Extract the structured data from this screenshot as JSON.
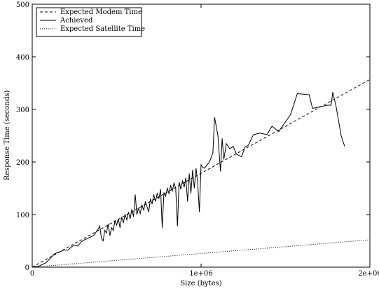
{
  "chart_data": {
    "type": "line",
    "xlabel": "Size (bytes)",
    "ylabel": "Response Time (seconds)",
    "xlim": [
      0,
      2000000
    ],
    "ylim": [
      0,
      500
    ],
    "x_ticks": [
      {
        "value": 0,
        "label": "0"
      },
      {
        "value": 1000000,
        "label": "1e+06"
      },
      {
        "value": 2000000,
        "label": "2e+06"
      }
    ],
    "y_ticks": [
      {
        "value": 0,
        "label": "0"
      },
      {
        "value": 100,
        "label": "100"
      },
      {
        "value": 200,
        "label": "200"
      },
      {
        "value": 300,
        "label": "300"
      },
      {
        "value": 400,
        "label": "400"
      },
      {
        "value": 500,
        "label": "500"
      }
    ],
    "legend_position": "top-left",
    "grid": false,
    "series": [
      {
        "name": "Expected Modem Time",
        "style": "dashed",
        "color": "#000000",
        "points": [
          [
            0,
            0
          ],
          [
            2000000,
            357
          ]
        ]
      },
      {
        "name": "Achieved",
        "style": "solid",
        "color": "#000000",
        "points": [
          [
            0,
            0
          ],
          [
            40000,
            2
          ],
          [
            80000,
            8
          ],
          [
            110000,
            18
          ],
          [
            130000,
            25
          ],
          [
            150000,
            28
          ],
          [
            170000,
            30
          ],
          [
            190000,
            33
          ],
          [
            210000,
            32
          ],
          [
            230000,
            38
          ],
          [
            250000,
            42
          ],
          [
            270000,
            40
          ],
          [
            290000,
            48
          ],
          [
            310000,
            52
          ],
          [
            330000,
            55
          ],
          [
            350000,
            58
          ],
          [
            370000,
            62
          ],
          [
            380000,
            68
          ],
          [
            390000,
            72
          ],
          [
            400000,
            78
          ],
          [
            410000,
            55
          ],
          [
            420000,
            50
          ],
          [
            430000,
            70
          ],
          [
            440000,
            65
          ],
          [
            450000,
            82
          ],
          [
            460000,
            60
          ],
          [
            470000,
            75
          ],
          [
            480000,
            70
          ],
          [
            490000,
            88
          ],
          [
            500000,
            80
          ],
          [
            510000,
            92
          ],
          [
            520000,
            75
          ],
          [
            530000,
            95
          ],
          [
            540000,
            85
          ],
          [
            550000,
            100
          ],
          [
            560000,
            90
          ],
          [
            570000,
            105
          ],
          [
            580000,
            92
          ],
          [
            590000,
            110
          ],
          [
            600000,
            96
          ],
          [
            610000,
            138
          ],
          [
            620000,
            100
          ],
          [
            630000,
            112
          ],
          [
            640000,
            102
          ],
          [
            650000,
            118
          ],
          [
            660000,
            108
          ],
          [
            670000,
            125
          ],
          [
            680000,
            115
          ],
          [
            690000,
            105
          ],
          [
            700000,
            130
          ],
          [
            710000,
            120
          ],
          [
            720000,
            138
          ],
          [
            730000,
            125
          ],
          [
            740000,
            140
          ],
          [
            750000,
            130
          ],
          [
            760000,
            148
          ],
          [
            770000,
            75
          ],
          [
            780000,
            142
          ],
          [
            790000,
            135
          ],
          [
            800000,
            150
          ],
          [
            810000,
            140
          ],
          [
            820000,
            155
          ],
          [
            830000,
            145
          ],
          [
            840000,
            160
          ],
          [
            850000,
            150
          ],
          [
            860000,
            78
          ],
          [
            870000,
            162
          ],
          [
            880000,
            148
          ],
          [
            890000,
            165
          ],
          [
            900000,
            152
          ],
          [
            910000,
            170
          ],
          [
            920000,
            125
          ],
          [
            930000,
            178
          ],
          [
            940000,
            140
          ],
          [
            950000,
            185
          ],
          [
            960000,
            150
          ],
          [
            970000,
            188
          ],
          [
            980000,
            160
          ],
          [
            990000,
            105
          ],
          [
            1000000,
            195
          ],
          [
            1010000,
            190
          ],
          [
            1020000,
            188
          ],
          [
            1050000,
            200
          ],
          [
            1070000,
            218
          ],
          [
            1080000,
            285
          ],
          [
            1100000,
            250
          ],
          [
            1115000,
            182
          ],
          [
            1125000,
            245
          ],
          [
            1135000,
            205
          ],
          [
            1150000,
            235
          ],
          [
            1170000,
            225
          ],
          [
            1190000,
            230
          ],
          [
            1210000,
            215
          ],
          [
            1240000,
            210
          ],
          [
            1260000,
            228
          ],
          [
            1280000,
            232
          ],
          [
            1310000,
            252
          ],
          [
            1350000,
            255
          ],
          [
            1390000,
            252
          ],
          [
            1420000,
            268
          ],
          [
            1460000,
            258
          ],
          [
            1530000,
            290
          ],
          [
            1570000,
            330
          ],
          [
            1640000,
            328
          ],
          [
            1660000,
            302
          ],
          [
            1750000,
            308
          ],
          [
            1770000,
            308
          ],
          [
            1780000,
            333
          ],
          [
            1800000,
            305
          ],
          [
            1830000,
            250
          ],
          [
            1850000,
            230
          ]
        ]
      },
      {
        "name": "Expected Satellite Time",
        "style": "dotted",
        "color": "#000000",
        "points": [
          [
            0,
            0
          ],
          [
            2000000,
            52
          ]
        ]
      }
    ]
  }
}
